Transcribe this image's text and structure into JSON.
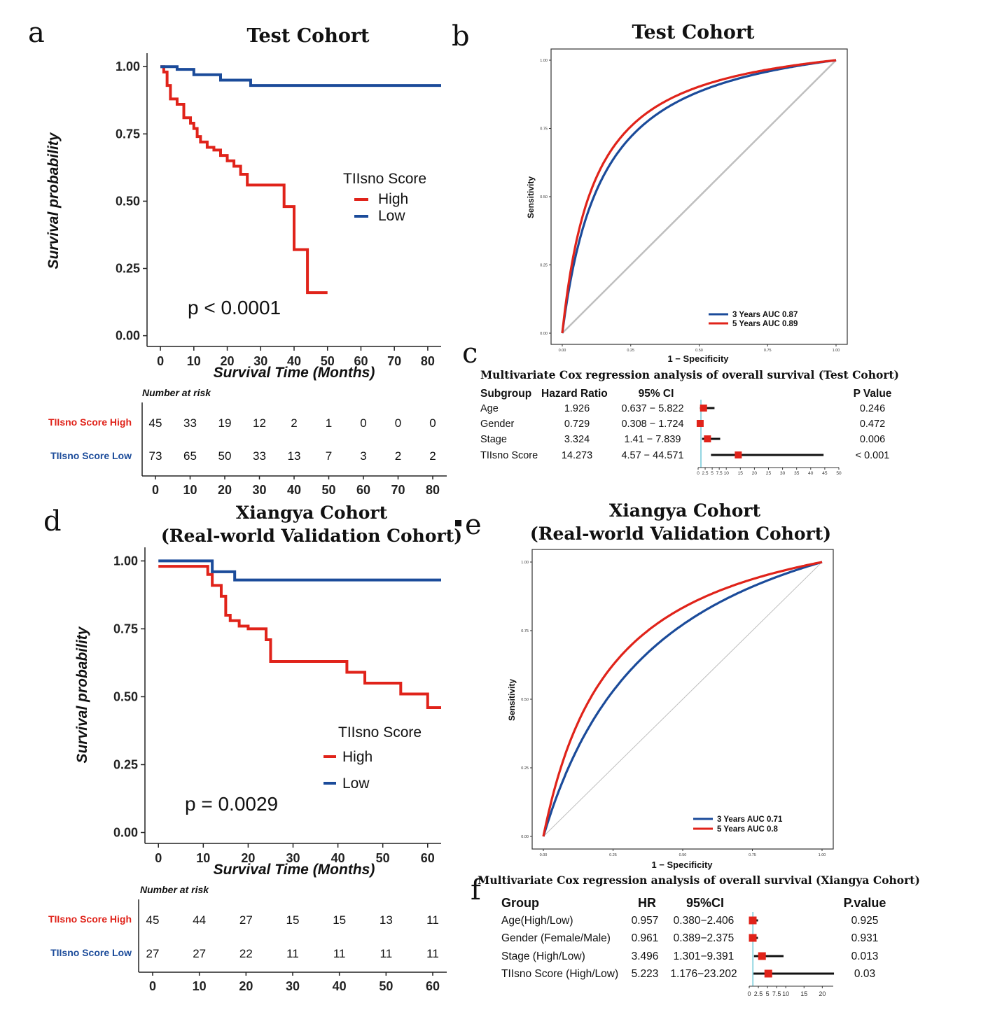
{
  "colors": {
    "high": "#e0231a",
    "low": "#1b4b9a",
    "diag": "#bfbfbf",
    "forest_line": "#6fc8d8",
    "forest_box": "#e0231a"
  },
  "panels": {
    "a": "a",
    "b": "b",
    "c": "c",
    "d": "d",
    "e": "e",
    "f": "f"
  },
  "chart_data": [
    {
      "id": "a",
      "type": "line",
      "title": "Test Cohort",
      "xlabel": "Survival Time (Months)",
      "ylabel": "Survival probability",
      "xticks": [
        "0",
        "10",
        "20",
        "30",
        "40",
        "50",
        "60",
        "70",
        "80"
      ],
      "yticks": [
        "0.00",
        "0.25",
        "0.50",
        "0.75",
        "1.00"
      ],
      "xlim": [
        -4,
        84
      ],
      "ylim": [
        -0.04,
        1.05
      ],
      "legend_title": "TIIsno Score",
      "pvalue": "p < 0.0001",
      "series": [
        {
          "name": "High",
          "color_key": "high",
          "x": [
            0,
            1,
            2,
            3,
            5,
            7,
            9,
            10,
            11,
            12,
            14,
            16,
            18,
            20,
            22,
            24,
            26,
            28,
            30,
            32,
            34,
            35,
            36,
            37,
            38,
            39,
            40,
            42,
            43,
            44,
            46,
            48,
            50
          ],
          "y": [
            1.0,
            0.98,
            0.93,
            0.88,
            0.86,
            0.81,
            0.79,
            0.77,
            0.74,
            0.72,
            0.7,
            0.69,
            0.67,
            0.65,
            0.63,
            0.6,
            0.56,
            0.56,
            0.56,
            0.56,
            0.56,
            0.56,
            0.56,
            0.48,
            0.48,
            0.48,
            0.32,
            0.32,
            0.32,
            0.16,
            0.16,
            0.16,
            0.16
          ]
        },
        {
          "name": "Low",
          "color_key": "low",
          "x": [
            0,
            5,
            10,
            15,
            18,
            20,
            25,
            27,
            30,
            40,
            50,
            60,
            70,
            80,
            84
          ],
          "y": [
            1.0,
            0.99,
            0.97,
            0.97,
            0.95,
            0.95,
            0.95,
            0.93,
            0.93,
            0.93,
            0.93,
            0.93,
            0.93,
            0.93,
            0.93
          ]
        }
      ],
      "risk_table": {
        "title": "Number at risk",
        "rows": [
          {
            "label": "TIIsno Score High",
            "color_key": "high",
            "values": [
              "45",
              "33",
              "19",
              "12",
              "2",
              "1",
              "0",
              "0",
              "0"
            ]
          },
          {
            "label": "TIIsno Score Low",
            "color_key": "low",
            "values": [
              "73",
              "65",
              "50",
              "33",
              "13",
              "7",
              "3",
              "2",
              "2"
            ]
          }
        ],
        "xticks": [
          "0",
          "10",
          "20",
          "30",
          "40",
          "50",
          "60",
          "70",
          "80"
        ]
      }
    },
    {
      "id": "b",
      "type": "line",
      "title": "Test Cohort",
      "xlabel": "1 − Specificity",
      "ylabel": "Sensitivity",
      "xticks": [
        "0.00",
        "0.25",
        "0.50",
        "0.75",
        "1.00"
      ],
      "yticks": [
        "0.00",
        "0.25",
        "0.50",
        "0.75",
        "1.00"
      ],
      "series": [
        {
          "name": "3 Years AUC 0.87",
          "color_key": "low",
          "k": 0.15
        },
        {
          "name": "5 Years AUC 0.89",
          "color_key": "high",
          "k": 0.12
        }
      ]
    },
    {
      "id": "c",
      "type": "table",
      "title": "Multivariate Cox regression analysis of overall survival (Test Cohort)",
      "headers": {
        "group": "Subgroup",
        "hr": "Hazard Ratio",
        "ci": "95% CI",
        "p": "P Value"
      },
      "rows": [
        {
          "group": "Age",
          "hr": "1.926",
          "ci": "0.637 − 5.822",
          "p": "0.246",
          "hr_val": 1.926,
          "lo": 0.637,
          "hi": 5.822
        },
        {
          "group": "Gender",
          "hr": "0.729",
          "ci": "0.308 − 1.724",
          "p": "0.472",
          "hr_val": 0.729,
          "lo": 0.308,
          "hi": 1.724
        },
        {
          "group": "Stage",
          "hr": "3.324",
          "ci": "1.41 − 7.839",
          "p": "0.006",
          "hr_val": 3.324,
          "lo": 1.41,
          "hi": 7.839
        },
        {
          "group": "TIIsno Score",
          "hr": "14.273",
          "ci": "4.57 − 44.571",
          "p": "< 0.001",
          "hr_val": 14.273,
          "lo": 4.57,
          "hi": 44.571
        }
      ],
      "axis_ticks": [
        "0",
        "2.5",
        "5",
        "7.5",
        "10",
        "15",
        "20",
        "25",
        "30",
        "35",
        "40",
        "45",
        "50"
      ],
      "axis_values": [
        0,
        2.5,
        5,
        7.5,
        10,
        15,
        20,
        25,
        30,
        35,
        40,
        45,
        50
      ],
      "xlim": [
        0,
        50
      ]
    },
    {
      "id": "d",
      "type": "line",
      "title_lines": [
        "Xiangya Cohort",
        "(Real-world Validation Cohort)"
      ],
      "xlabel": "Survival Time (Months)",
      "ylabel": "Survival probability",
      "xticks": [
        "0",
        "10",
        "20",
        "30",
        "40",
        "50",
        "60"
      ],
      "yticks": [
        "0.00",
        "0.25",
        "0.50",
        "0.75",
        "1.00"
      ],
      "xlim": [
        -3,
        63
      ],
      "ylim": [
        -0.04,
        1.05
      ],
      "legend_title": "TIIsno Score",
      "pvalue": "p = 0.0029",
      "series": [
        {
          "name": "High",
          "color_key": "high",
          "x": [
            0,
            10,
            11,
            12,
            13,
            14,
            15,
            16,
            18,
            20,
            22,
            24,
            25,
            26,
            30,
            35,
            40,
            42,
            44,
            46,
            48,
            50,
            52,
            54,
            56,
            58,
            60,
            63
          ],
          "y": [
            0.98,
            0.98,
            0.95,
            0.91,
            0.91,
            0.87,
            0.8,
            0.78,
            0.76,
            0.75,
            0.75,
            0.71,
            0.63,
            0.63,
            0.63,
            0.63,
            0.63,
            0.59,
            0.59,
            0.55,
            0.55,
            0.55,
            0.55,
            0.51,
            0.51,
            0.51,
            0.46,
            0.46
          ]
        },
        {
          "name": "Low",
          "color_key": "low",
          "x": [
            0,
            12,
            15,
            17,
            20,
            30,
            40,
            50,
            60,
            63
          ],
          "y": [
            1.0,
            0.96,
            0.96,
            0.93,
            0.93,
            0.93,
            0.93,
            0.93,
            0.93,
            0.93
          ]
        }
      ],
      "risk_table": {
        "title": "Number at risk",
        "rows": [
          {
            "label": "TIIsno Score High",
            "color_key": "high",
            "values": [
              "45",
              "44",
              "27",
              "15",
              "15",
              "13",
              "11"
            ]
          },
          {
            "label": "TIIsno Score Low",
            "color_key": "low",
            "values": [
              "27",
              "27",
              "22",
              "11",
              "11",
              "11",
              "11"
            ]
          }
        ],
        "xticks": [
          "0",
          "10",
          "20",
          "30",
          "40",
          "50",
          "60"
        ]
      }
    },
    {
      "id": "e",
      "type": "line",
      "title_lines": [
        "Xiangya Cohort",
        "(Real-world Validation Cohort)"
      ],
      "xlabel": "1 − Specificity",
      "ylabel": "Sensitivity",
      "xticks": [
        "0.00",
        "0.25",
        "0.50",
        "0.75",
        "1.00"
      ],
      "yticks": [
        "0.00",
        "0.25",
        "0.50",
        "0.75",
        "1.00"
      ],
      "series": [
        {
          "name": "3 Years AUC 0.71",
          "color_key": "low",
          "k": 0.42
        },
        {
          "name": "5 Years AUC 0.8",
          "color_key": "high",
          "k": 0.25
        }
      ]
    },
    {
      "id": "f",
      "type": "table",
      "title": "Multivariate Cox regression analysis of overall survival (Xiangya Cohort)",
      "headers": {
        "group": "Group",
        "hr": "HR",
        "ci": "95%CI",
        "p": "P.value"
      },
      "rows": [
        {
          "group": "Age(High/Low)",
          "hr": "0.957",
          "ci": "0.380−2.406",
          "p": "0.925",
          "hr_val": 0.957,
          "lo": 0.38,
          "hi": 2.406
        },
        {
          "group": "Gender (Female/Male)",
          "hr": "0.961",
          "ci": "0.389−2.375",
          "p": "0.931",
          "hr_val": 0.961,
          "lo": 0.389,
          "hi": 2.375
        },
        {
          "group": "Stage (High/Low)",
          "hr": "3.496",
          "ci": "1.301−9.391",
          "p": "0.013",
          "hr_val": 3.496,
          "lo": 1.301,
          "hi": 9.391
        },
        {
          "group": "TIIsno Score (High/Low)",
          "hr": "5.223",
          "ci": "1.176−23.202",
          "p": "0.03",
          "hr_val": 5.223,
          "lo": 1.176,
          "hi": 23.202
        }
      ],
      "axis_ticks": [
        "0",
        "2.5",
        "5",
        "7.5",
        "10",
        "15",
        "20"
      ],
      "axis_values": [
        0,
        2.5,
        5,
        7.5,
        10,
        15,
        20
      ],
      "xlim": [
        0,
        23
      ]
    }
  ]
}
